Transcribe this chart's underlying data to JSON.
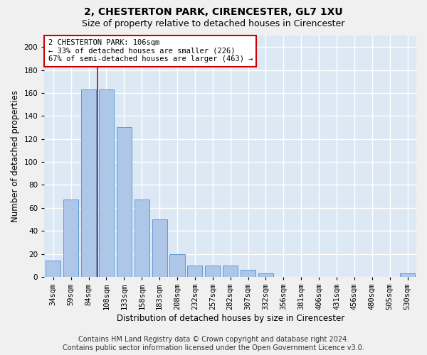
{
  "title": "2, CHESTERTON PARK, CIRENCESTER, GL7 1XU",
  "subtitle": "Size of property relative to detached houses in Cirencester",
  "xlabel": "Distribution of detached houses by size in Cirencester",
  "ylabel": "Number of detached properties",
  "footer_line1": "Contains HM Land Registry data © Crown copyright and database right 2024.",
  "footer_line2": "Contains public sector information licensed under the Open Government Licence v3.0.",
  "bar_labels": [
    "34sqm",
    "59sqm",
    "84sqm",
    "108sqm",
    "133sqm",
    "158sqm",
    "183sqm",
    "208sqm",
    "232sqm",
    "257sqm",
    "282sqm",
    "307sqm",
    "332sqm",
    "356sqm",
    "381sqm",
    "406sqm",
    "431sqm",
    "456sqm",
    "480sqm",
    "505sqm",
    "530sqm"
  ],
  "bar_values": [
    14,
    67,
    163,
    163,
    130,
    67,
    50,
    20,
    10,
    10,
    10,
    6,
    3,
    0,
    0,
    0,
    0,
    0,
    0,
    0,
    3
  ],
  "bar_color": "#aec6e8",
  "bar_edgecolor": "#5b9bd5",
  "annotation_title": "2 CHESTERTON PARK: 106sqm",
  "annotation_line1": "← 33% of detached houses are smaller (226)",
  "annotation_line2": "67% of semi-detached houses are larger (463) →",
  "annotation_box_color": "#ffffff",
  "annotation_box_edgecolor": "#cc0000",
  "vline_color": "#cc0000",
  "vline_x": 2.5,
  "ylim": [
    0,
    210
  ],
  "yticks": [
    0,
    20,
    40,
    60,
    80,
    100,
    120,
    140,
    160,
    180,
    200
  ],
  "bg_color": "#dde8f5",
  "grid_color": "#ffffff",
  "title_fontsize": 10,
  "subtitle_fontsize": 9,
  "axis_label_fontsize": 8.5,
  "tick_fontsize": 7.5,
  "annotation_fontsize": 7.5,
  "footer_fontsize": 7
}
